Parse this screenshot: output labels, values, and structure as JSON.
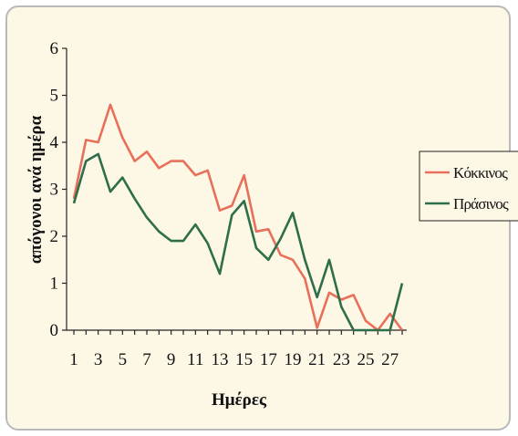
{
  "chart_data": {
    "type": "line",
    "x": [
      1,
      2,
      3,
      4,
      5,
      6,
      7,
      8,
      9,
      10,
      11,
      12,
      13,
      14,
      15,
      16,
      17,
      18,
      19,
      20,
      21,
      22,
      23,
      24,
      25,
      26,
      27,
      28
    ],
    "xticks": [
      1,
      3,
      5,
      7,
      9,
      11,
      13,
      15,
      17,
      19,
      21,
      23,
      25,
      27
    ],
    "yticks": [
      0,
      1,
      2,
      3,
      4,
      5,
      6
    ],
    "xlabel": "Ημέρες",
    "ylabel": "απόγονοι ανά ημέρα",
    "ylim": [
      0,
      6
    ],
    "xlim": [
      1,
      28
    ],
    "grid": false,
    "legend_position": "right",
    "series": [
      {
        "name": "Κόκκινος",
        "color": "#e8705a",
        "values": [
          2.8,
          4.05,
          4.0,
          4.8,
          4.1,
          3.6,
          3.8,
          3.45,
          3.6,
          3.6,
          3.3,
          3.4,
          2.55,
          2.65,
          3.3,
          2.1,
          2.15,
          1.6,
          1.5,
          1.1,
          0.05,
          0.8,
          0.65,
          0.75,
          0.2,
          0.0,
          0.35,
          0.0
        ]
      },
      {
        "name": "Πράσινος",
        "color": "#2f6e4a",
        "values": [
          2.7,
          3.6,
          3.75,
          2.95,
          3.25,
          2.8,
          2.4,
          2.1,
          1.9,
          1.9,
          2.25,
          1.85,
          1.2,
          2.45,
          2.75,
          1.75,
          1.5,
          1.95,
          2.5,
          1.5,
          0.7,
          1.5,
          0.5,
          0.0,
          0.0,
          0.0,
          0.0,
          1.0
        ]
      }
    ]
  }
}
